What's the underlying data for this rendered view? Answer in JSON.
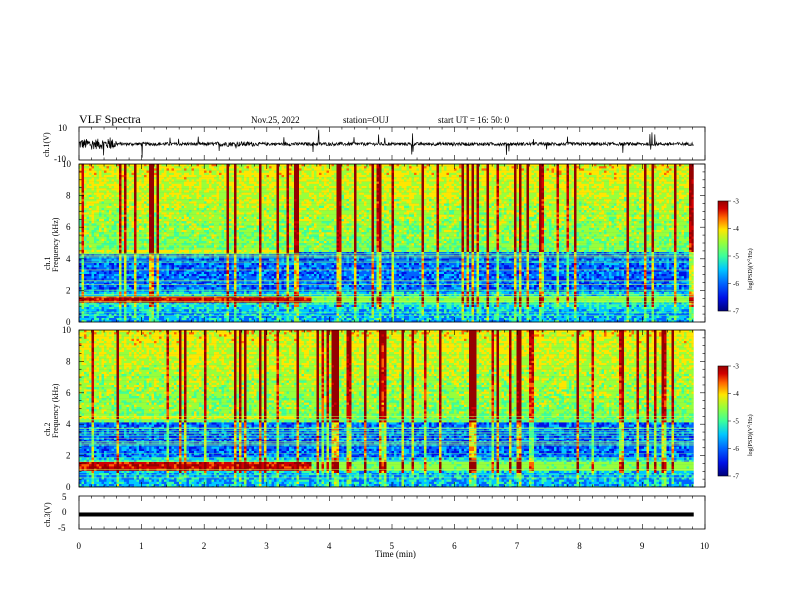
{
  "header": {
    "title": "VLF Spectra",
    "date": "Nov.25, 2022",
    "station": "station=OUJ",
    "start": "start  UT =   16: 50: 0"
  },
  "chart_data": [
    {
      "type": "line",
      "panel": "ch1-waveform",
      "ylabel": "ch.1(V)",
      "ylim": [
        -10,
        10
      ],
      "y_ticks": [
        "10",
        "-10"
      ],
      "xlim": [
        0,
        10
      ],
      "series": [
        {
          "y_mean": -0.3,
          "amplitude": "about ±1 V with spikes up to ±3 V; higher (about ±3 V) during first 0.6 min"
        }
      ]
    },
    {
      "type": "heatmap",
      "panel": "ch1-spectrogram",
      "ylabel": "ch.1\nFrequency (kHz)",
      "ylim": [
        0,
        10
      ],
      "y_ticks": [
        "0",
        "2",
        "4",
        "6",
        "8",
        "10"
      ],
      "xlim": [
        0,
        10
      ],
      "colorbar": {
        "label": "log(PSD)(V²/Hz)",
        "range": [
          -7,
          -3
        ],
        "ticks": [
          "-3",
          "-4",
          "-5",
          "-6",
          "-7"
        ]
      },
      "features": {
        "strong_band_khz": 1.5,
        "band_end_min": 3.7,
        "low_freq_noise_band_khz": [
          2,
          4.5
        ]
      }
    },
    {
      "type": "heatmap",
      "panel": "ch2-spectrogram",
      "ylabel": "ch.2\nFrequency (kHz)",
      "ylim": [
        0,
        10
      ],
      "y_ticks": [
        "0",
        "2",
        "4",
        "6",
        "8",
        "10"
      ],
      "xlim": [
        0,
        10
      ],
      "colorbar": {
        "label": "log(PSD)(V²/Hz)",
        "range": [
          -7,
          -3
        ],
        "ticks": [
          "-3",
          "-4",
          "-5",
          "-6",
          "-7"
        ]
      },
      "features": {
        "strong_band_khz": 1.4,
        "band_end_min": 3.7,
        "low_freq_noise_band_khz": [
          2,
          4.2
        ]
      }
    },
    {
      "type": "line",
      "panel": "ch3-waveform",
      "ylabel": "ch.3(V)",
      "ylim": [
        -5,
        5
      ],
      "y_ticks": [
        "5",
        "0",
        "-5"
      ],
      "xlim": [
        0,
        10
      ],
      "series": [
        {
          "y_mean": -0.6,
          "amplitude": "flat thick line"
        }
      ]
    }
  ],
  "x_axis": {
    "label": "Time (min)",
    "ticks": [
      "0",
      "1",
      "2",
      "3",
      "4",
      "5",
      "6",
      "7",
      "8",
      "9",
      "10"
    ],
    "data_end": 9.82
  },
  "colormap": [
    "#00007a",
    "#0010e6",
    "#0064ff",
    "#00c8ff",
    "#3cff9b",
    "#96ff3c",
    "#ffe600",
    "#ff6400",
    "#d20000",
    "#960000"
  ]
}
